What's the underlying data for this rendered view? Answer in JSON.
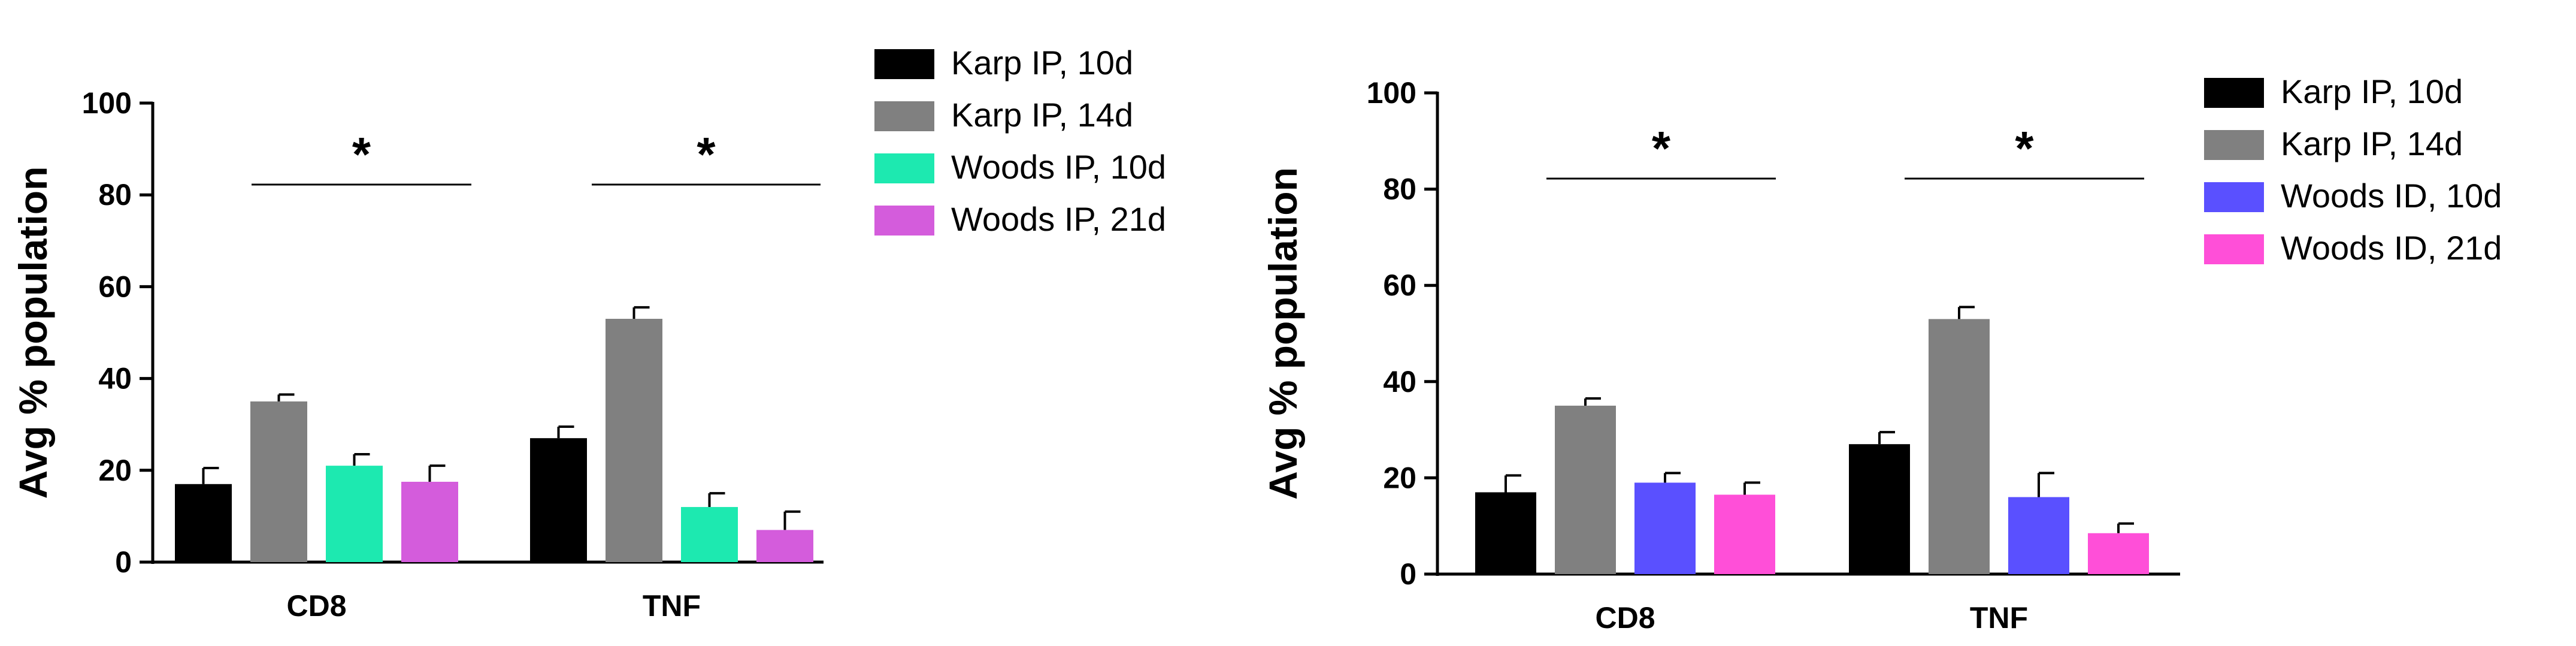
{
  "chart_data": [
    {
      "type": "bar",
      "ylabel": "Avg % population",
      "xlabel": "",
      "ylim": [
        0,
        100
      ],
      "yticks": [
        0,
        20,
        40,
        60,
        80,
        100
      ],
      "categories": [
        "CD8",
        "TNF"
      ],
      "legend_position": "top-right",
      "series": [
        {
          "name": "Karp IP, 10d",
          "color": "#000000",
          "values": [
            17,
            27
          ],
          "errors": [
            3.5,
            2.5
          ]
        },
        {
          "name": "Karp IP, 14d",
          "color": "#808080",
          "values": [
            35,
            53
          ],
          "errors": [
            1.5,
            2.5
          ]
        },
        {
          "name": "Woods IP, 10d",
          "color": "#1de9b0",
          "values": [
            21,
            12
          ],
          "errors": [
            2.5,
            3
          ]
        },
        {
          "name": "Woods IP, 21d",
          "color": "#d45cdc",
          "values": [
            17.5,
            7
          ],
          "errors": [
            3.5,
            4
          ]
        }
      ],
      "significance": [
        {
          "category": "CD8",
          "label": "*"
        },
        {
          "category": "TNF",
          "label": "*"
        }
      ]
    },
    {
      "type": "bar",
      "ylabel": "Avg % population",
      "xlabel": "",
      "ylim": [
        0,
        100
      ],
      "yticks": [
        0,
        20,
        40,
        60,
        80,
        100
      ],
      "categories": [
        "CD8",
        "TNF"
      ],
      "legend_position": "top-right",
      "series": [
        {
          "name": "Karp IP, 10d",
          "color": "#000000",
          "values": [
            17,
            27
          ],
          "errors": [
            3.5,
            2.5
          ]
        },
        {
          "name": "Karp IP, 14d",
          "color": "#808080",
          "values": [
            35,
            53
          ],
          "errors": [
            1.5,
            2.5
          ]
        },
        {
          "name": "Woods ID, 10d",
          "color": "#5a50ff",
          "values": [
            19,
            16
          ],
          "errors": [
            2,
            5
          ]
        },
        {
          "name": "Woods ID, 21d",
          "color": "#ff4fd8",
          "values": [
            16.5,
            8.5
          ],
          "errors": [
            2.5,
            2
          ]
        }
      ],
      "significance": [
        {
          "category": "CD8",
          "label": "*"
        },
        {
          "category": "TNF",
          "label": "*"
        }
      ]
    }
  ]
}
